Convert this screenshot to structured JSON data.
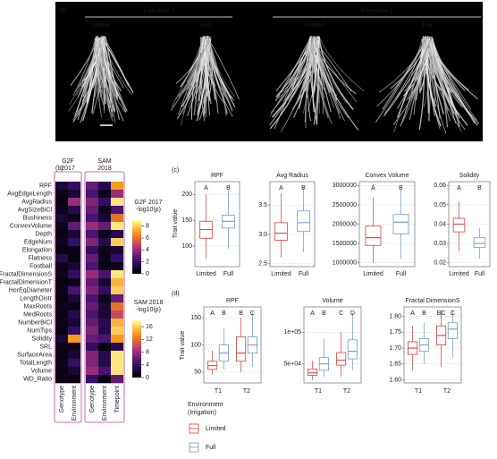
{
  "panel_a": {
    "label": "(a)",
    "groups": [
      {
        "title": "Time point 1",
        "conditions": [
          "Limited",
          "Full"
        ]
      },
      {
        "title": "Time point 2",
        "conditions": [
          "Limited",
          "Full"
        ]
      }
    ],
    "scale_bar": "2 cm"
  },
  "panel_b": {
    "label": "(b)",
    "traits": [
      "RPF",
      "AvgEdgeLength",
      "AvgRadius",
      "AvgSizeBiCl",
      "Bushiness",
      "ConvexVolume",
      "Depth",
      "EdgeNum",
      "Elongation",
      "Flatness",
      "Football",
      "FractalDimensionS",
      "FractalDimensionT",
      "HorEqDiameter",
      "LengthDistr",
      "MaxRoots",
      "MedRoots",
      "NumberBiCl",
      "NumTips",
      "Solidity",
      "SRL",
      "SurfaceArea",
      "TotalLength",
      "Volume",
      "WD_Ratio"
    ],
    "heatmaps": [
      {
        "title": [
          "G2F",
          "2017"
        ],
        "columns": [
          "Genotype",
          "Environment"
        ],
        "values": [
          [
            1,
            2
          ],
          [
            0.5,
            1
          ],
          [
            0.3,
            4
          ],
          [
            0.5,
            1.5
          ],
          [
            1,
            0.5
          ],
          [
            0.5,
            3
          ],
          [
            0.3,
            1
          ],
          [
            0.5,
            2
          ],
          [
            0.3,
            0.5
          ],
          [
            1.5,
            0.3
          ],
          [
            0.5,
            1
          ],
          [
            0.5,
            2
          ],
          [
            0.3,
            0.5
          ],
          [
            0.5,
            2.5
          ],
          [
            0.3,
            1
          ],
          [
            0.5,
            0.5
          ],
          [
            0.3,
            1.5
          ],
          [
            0.5,
            1
          ],
          [
            0.3,
            2
          ],
          [
            1,
            7
          ],
          [
            0.5,
            0.5
          ],
          [
            0.3,
            1
          ],
          [
            0.5,
            2
          ],
          [
            0.3,
            1
          ],
          [
            0.5,
            0.3
          ]
        ],
        "colorbar": {
          "title": [
            "G2F 2017",
            "-log10(p)"
          ],
          "lim": [
            0,
            9
          ],
          "ticks": [
            0,
            2,
            4,
            6,
            8
          ]
        }
      },
      {
        "title": [
          "SAM",
          "2018"
        ],
        "columns": [
          "Genotype",
          "Environment",
          "Timepoint"
        ],
        "values": [
          [
            6,
            3,
            14
          ],
          [
            5,
            1,
            8
          ],
          [
            7,
            4,
            17
          ],
          [
            6,
            1,
            5
          ],
          [
            5,
            2,
            12
          ],
          [
            8,
            6,
            17
          ],
          [
            5,
            1,
            3
          ],
          [
            7,
            3,
            16
          ],
          [
            4,
            1,
            2
          ],
          [
            6,
            1,
            4
          ],
          [
            5,
            0.5,
            1
          ],
          [
            8,
            5,
            17
          ],
          [
            6,
            2,
            15
          ],
          [
            7,
            4,
            16
          ],
          [
            5,
            1,
            6
          ],
          [
            6,
            2,
            12
          ],
          [
            5,
            2,
            10
          ],
          [
            6,
            3,
            15
          ],
          [
            7,
            3,
            16
          ],
          [
            6,
            5,
            14
          ],
          [
            4,
            0.5,
            3
          ],
          [
            7,
            3,
            17
          ],
          [
            7,
            3,
            17
          ],
          [
            8,
            5,
            17
          ],
          [
            4,
            0.5,
            6
          ]
        ],
        "colorbar": {
          "title": [
            "SAM 2018",
            "-log10(p)"
          ],
          "lim": [
            0,
            18
          ],
          "ticks": [
            0,
            4,
            8,
            12,
            16
          ]
        }
      }
    ]
  },
  "panel_c": {
    "label": "(c)",
    "y_label": "Trait value",
    "categories": [
      "Limited",
      "Full"
    ],
    "colors": [
      "#d9534f",
      "#7ba3d0"
    ],
    "charts": [
      {
        "title": "RPF",
        "ylim": [
          60,
          225
        ],
        "yticks": [
          100,
          150,
          200
        ],
        "letters": [
          "A",
          "B"
        ],
        "boxes": [
          {
            "low": 75,
            "q1": 115,
            "median": 132,
            "q3": 148,
            "high": 200
          },
          {
            "low": 95,
            "q1": 135,
            "median": 148,
            "q3": 160,
            "high": 210
          }
        ]
      },
      {
        "title": "Avg Radius",
        "ylim": [
          2.45,
          3.9
        ],
        "yticks": [
          {
            "value": 2.5,
            "label": "2.5"
          },
          {
            "value": 3,
            "label": "3.0"
          },
          {
            "value": 3.5,
            "label": "3.5"
          }
        ],
        "letters": [
          "A",
          "B"
        ],
        "boxes": [
          {
            "low": 2.6,
            "q1": 2.9,
            "median": 3.02,
            "q3": 3.2,
            "high": 3.7
          },
          {
            "low": 2.7,
            "q1": 3.05,
            "median": 3.2,
            "q3": 3.4,
            "high": 3.8
          }
        ]
      },
      {
        "title": "Convex Volume",
        "ylim": [
          900000,
          3100000
        ],
        "yticks": [
          1000000,
          1500000,
          2000000,
          2500000,
          3000000
        ],
        "letters": [
          "A",
          "B"
        ],
        "boxes": [
          {
            "low": 1000000,
            "q1": 1450000,
            "median": 1650000,
            "q3": 1950000,
            "high": 2700000
          },
          {
            "low": 1100000,
            "q1": 1750000,
            "median": 2050000,
            "q3": 2250000,
            "high": 2900000
          }
        ]
      },
      {
        "title": "Solidity",
        "ylim": [
          0.018,
          0.062
        ],
        "yticks": [
          {
            "value": 0.02,
            "label": "0.02"
          },
          {
            "value": 0.03,
            "label": "0.03"
          },
          {
            "value": 0.04,
            "label": "0.04"
          },
          {
            "value": 0.05,
            "label": "0.05"
          },
          {
            "value": 0.06,
            "label": "0.06"
          }
        ],
        "letters": [
          "A",
          "B"
        ],
        "boxes": [
          {
            "low": 0.026,
            "q1": 0.036,
            "median": 0.04,
            "q3": 0.043,
            "high": 0.052
          },
          {
            "low": 0.022,
            "q1": 0.028,
            "median": 0.03,
            "q3": 0.033,
            "high": 0.038
          }
        ]
      }
    ]
  },
  "panel_d": {
    "label": "(d)",
    "y_label": "Trait value",
    "categories": [
      "T1",
      "T2"
    ],
    "series": [
      {
        "name": "Limited",
        "color": "#d9534f"
      },
      {
        "name": "Full",
        "color": "#7ba3d0"
      }
    ],
    "charts": [
      {
        "title": "RPF",
        "ylim": [
          30,
          170
        ],
        "yticks": [
          50,
          100,
          150
        ],
        "letters": [
          [
            "A",
            "B"
          ],
          [
            "B",
            "C"
          ]
        ],
        "boxes": [
          [
            {
              "low": 45,
              "q1": 55,
              "median": 62,
              "q3": 70,
              "high": 90
            },
            {
              "low": 55,
              "q1": 70,
              "median": 85,
              "q3": 100,
              "high": 130
            }
          ],
          [
            {
              "low": 50,
              "q1": 70,
              "median": 85,
              "q3": 115,
              "high": 150
            },
            {
              "low": 60,
              "q1": 85,
              "median": 100,
              "q3": 115,
              "high": 160
            }
          ]
        ]
      },
      {
        "title": "Volume",
        "ylim": [
          20000,
          140000
        ],
        "yticks": [
          {
            "value": 50000,
            "label": "5e+04"
          },
          {
            "value": 100000,
            "label": "1e+05"
          }
        ],
        "letters": [
          [
            "A",
            "B"
          ],
          [
            "C",
            "D"
          ]
        ],
        "boxes": [
          [
            {
              "low": 25000,
              "q1": 32000,
              "median": 36000,
              "q3": 42000,
              "high": 55000
            },
            {
              "low": 30000,
              "q1": 40000,
              "median": 50000,
              "q3": 60000,
              "high": 90000
            }
          ],
          [
            {
              "low": 30000,
              "q1": 48000,
              "median": 56000,
              "q3": 68000,
              "high": 100000
            },
            {
              "low": 40000,
              "q1": 58000,
              "median": 70000,
              "q3": 88000,
              "high": 130000
            }
          ]
        ]
      },
      {
        "title": "Fractal DimensionS",
        "ylim": [
          1.59,
          1.83
        ],
        "yticks": [
          {
            "value": 1.6,
            "label": "1.60"
          },
          {
            "value": 1.65,
            "label": "1.65"
          },
          {
            "value": 1.7,
            "label": "1.70"
          },
          {
            "value": 1.75,
            "label": "1.75"
          },
          {
            "value": 1.8,
            "label": "1.80"
          }
        ],
        "letters": [
          [
            "A",
            "B"
          ],
          [
            "BC",
            "C"
          ]
        ],
        "boxes": [
          [
            {
              "low": 1.63,
              "q1": 1.68,
              "median": 1.7,
              "q3": 1.72,
              "high": 1.77
            },
            {
              "low": 1.65,
              "q1": 1.69,
              "median": 1.71,
              "q3": 1.73,
              "high": 1.78
            }
          ],
          [
            {
              "low": 1.64,
              "q1": 1.71,
              "median": 1.74,
              "q3": 1.77,
              "high": 1.82
            },
            {
              "low": 1.67,
              "q1": 1.73,
              "median": 1.76,
              "q3": 1.78,
              "high": 1.82
            }
          ]
        ]
      }
    ],
    "legend_title": [
      "Environment",
      "(Irrigation)"
    ]
  }
}
